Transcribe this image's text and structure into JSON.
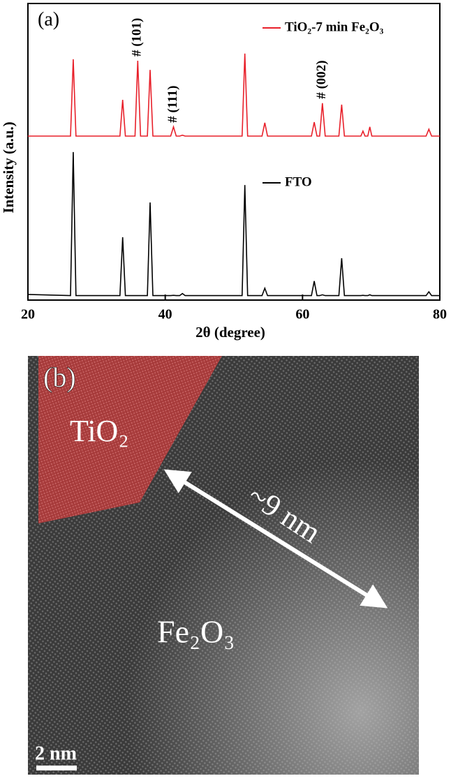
{
  "chart_data": {
    "type": "line",
    "panel_label": "(a)",
    "x_label": "2θ (degree)",
    "y_label": "Intensity (a.u.)",
    "x": [
      20,
      26.2,
      26.6,
      27.0,
      33.4,
      33.8,
      34.2,
      35.6,
      36.0,
      36.4,
      37.4,
      37.8,
      38.2,
      40.8,
      41.2,
      41.6,
      42.1,
      42.5,
      42.9,
      51.2,
      51.6,
      52.0,
      54.1,
      54.5,
      54.9,
      61.3,
      61.7,
      62.1,
      62.5,
      62.9,
      63.3,
      65.3,
      65.7,
      66.1,
      68.5,
      68.8,
      69.1,
      69.5,
      69.8,
      70.1,
      78.0,
      78.4,
      78.8,
      80
    ],
    "series": [
      {
        "name": "TiO₂-7 min Fe₂O₃",
        "color": "#e8202a",
        "values": [
          55.3,
          55.3,
          81.2,
          55.3,
          55.3,
          67.5,
          55.3,
          55.3,
          80.7,
          55.3,
          55.3,
          77.6,
          55.3,
          55.3,
          58.4,
          55.3,
          55.3,
          55.6,
          55.3,
          55.3,
          83.1,
          55.3,
          55.3,
          59.8,
          55.3,
          55.3,
          60.0,
          55.3,
          55.3,
          66.4,
          55.3,
          55.3,
          65.9,
          55.3,
          55.3,
          57.0,
          55.3,
          55.3,
          58.4,
          55.3,
          55.3,
          57.6,
          55.3,
          55.3
        ]
      },
      {
        "name": "FTO",
        "color": "#000000",
        "values": [
          1.9,
          1.5,
          49.9,
          1.5,
          1.5,
          21.2,
          1.5,
          1.5,
          1.5,
          1.5,
          1.5,
          32.9,
          1.5,
          1.5,
          1.6,
          1.5,
          1.5,
          2.2,
          1.5,
          1.5,
          38.8,
          1.5,
          1.5,
          4.0,
          1.5,
          1.5,
          6.4,
          1.5,
          1.5,
          1.8,
          1.5,
          1.5,
          14.1,
          1.5,
          1.5,
          1.6,
          1.5,
          1.5,
          1.8,
          1.5,
          1.5,
          2.8,
          1.5,
          1.5
        ]
      }
    ],
    "annotations": [
      {
        "text": "# (101)",
        "x": 36.0
      },
      {
        "text": "# (111)",
        "x": 41.2
      },
      {
        "text": "# (002)",
        "x": 62.9
      }
    ],
    "xlim": [
      20,
      80
    ],
    "xticks": [
      20,
      40,
      60,
      80
    ],
    "ylim": [
      0,
      100
    ]
  },
  "image": {
    "panel_label": "(b)",
    "labels": [
      "TiO₂",
      "~9 nm",
      "Fe₂O₃"
    ],
    "scale_bar": "2 nm"
  }
}
